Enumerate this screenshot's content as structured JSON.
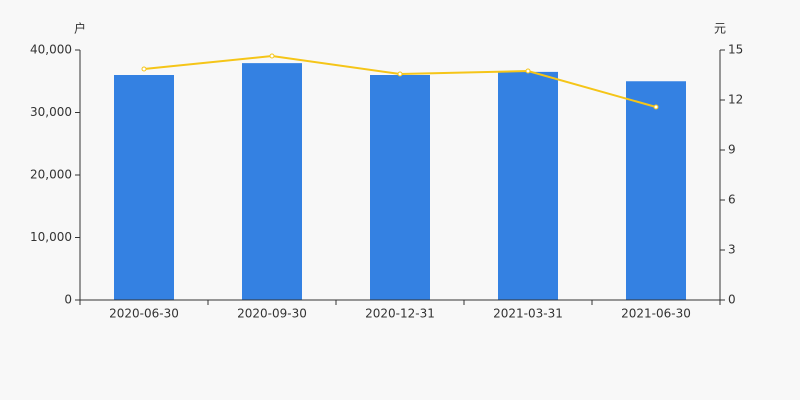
{
  "chart_data": {
    "type": "bar_line",
    "y_label": "户",
    "y2_label": "元",
    "categories": [
      "2020-06-30",
      "2020-09-30",
      "2020-12-31",
      "2021-03-31",
      "2021-06-30"
    ],
    "series": [
      {
        "type": "bar",
        "color": "#3481e2",
        "values": [
          36000,
          37900,
          36000,
          36500,
          35000
        ]
      },
      {
        "type": "line",
        "axis": "y2",
        "color": "#f5c518",
        "values": [
          13.86,
          14.64,
          13.56,
          13.74,
          11.58
        ]
      }
    ],
    "ylim": [
      0,
      40000
    ],
    "yticks": [
      0,
      {
        "value": 10000,
        "label": "10,000"
      },
      {
        "value": 20000,
        "label": "20,000"
      },
      {
        "value": 30000,
        "label": "30,000"
      },
      {
        "value": 40000,
        "label": "40,000"
      }
    ],
    "y2lim": [
      0,
      15
    ],
    "y2ticks": [
      0,
      3,
      6,
      9,
      12,
      15
    ]
  }
}
